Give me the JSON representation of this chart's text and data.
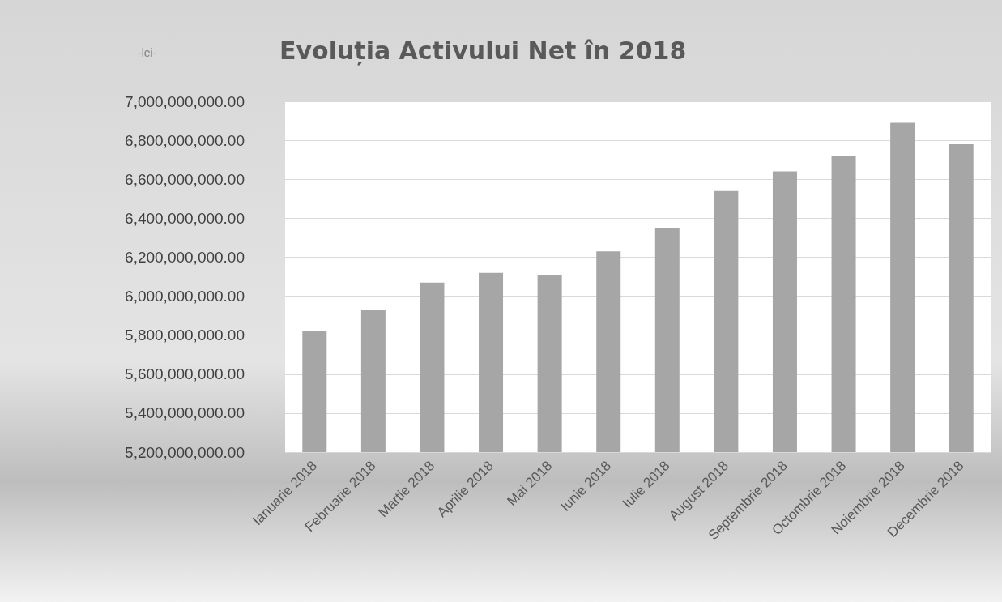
{
  "chart_data": {
    "type": "bar",
    "title": "Evoluția Activului Net în 2018",
    "ylabel": "-lei-",
    "categories": [
      "Ianuarie 2018",
      "Februarie 2018",
      "Martie 2018",
      "Aprilie 2018",
      "Mai 2018",
      "Iunie 2018",
      "Iulie 2018",
      "August 2018",
      "Septembrie 2018",
      "Octombrie 2018",
      "Noiembrie 2018",
      "Decembrie 2018"
    ],
    "values": [
      5820000000,
      5930000000,
      6070000000,
      6120000000,
      6110000000,
      6230000000,
      6350000000,
      6540000000,
      6640000000,
      6720000000,
      6890000000,
      6780000000
    ],
    "color": "#a6a6a6",
    "ylim": [
      5200000000,
      7000000000
    ],
    "yticks": [
      {
        "value": 5200000000,
        "label": "5,200,000,000.00"
      },
      {
        "value": 5400000000,
        "label": "5,400,000,000.00"
      },
      {
        "value": 5600000000,
        "label": "5,600,000,000.00"
      },
      {
        "value": 5800000000,
        "label": "5,800,000,000.00"
      },
      {
        "value": 6000000000,
        "label": "6,000,000,000.00"
      },
      {
        "value": 6200000000,
        "label": "6,200,000,000.00"
      },
      {
        "value": 6400000000,
        "label": "6,400,000,000.00"
      },
      {
        "value": 6600000000,
        "label": "6,600,000,000.00"
      },
      {
        "value": 6800000000,
        "label": "6,800,000,000.00"
      },
      {
        "value": 7000000000,
        "label": "7,000,000,000.00"
      }
    ],
    "grid": "y"
  }
}
